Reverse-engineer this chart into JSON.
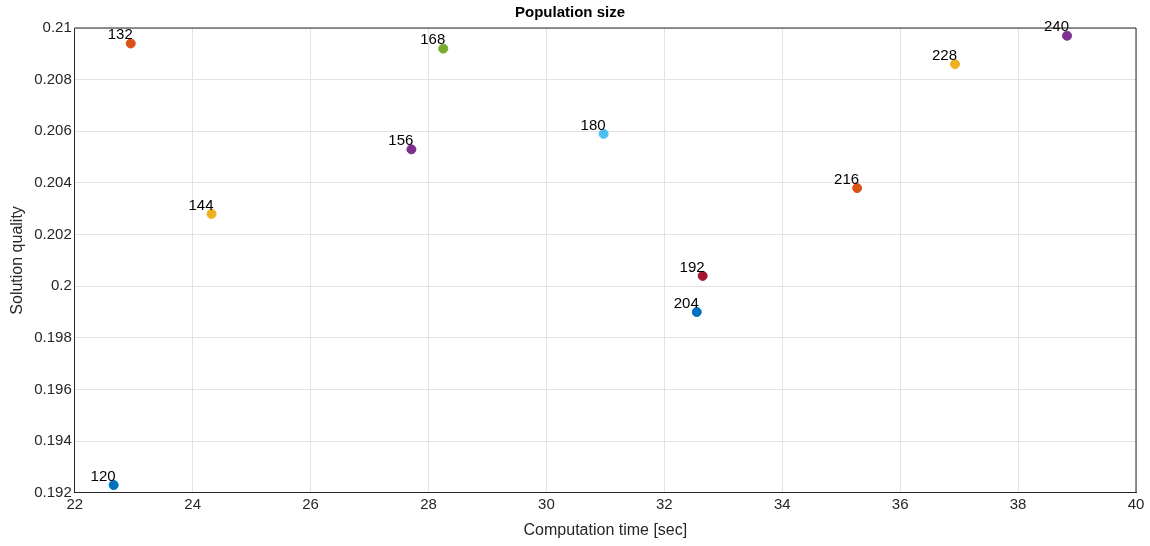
{
  "chart_data": {
    "type": "scatter",
    "title": "Population size",
    "xlabel": "Computation time [sec]",
    "ylabel": "Solution quality",
    "xlim": [
      22,
      40
    ],
    "xticks": [
      22,
      24,
      26,
      28,
      30,
      32,
      34,
      36,
      38,
      40
    ],
    "ylim": [
      0.192,
      0.21
    ],
    "yticks": [
      0.192,
      0.194,
      0.196,
      0.198,
      0.2,
      0.202,
      0.204,
      0.206,
      0.208,
      0.21
    ],
    "grid": true,
    "legend": false,
    "marker": "circle",
    "series": [
      {
        "name": "120",
        "color": "#0072bd",
        "x": [
          22.66
        ],
        "values": [
          0.1923
        ]
      },
      {
        "name": "132",
        "color": "#d95319",
        "x": [
          22.95
        ],
        "values": [
          0.2094
        ]
      },
      {
        "name": "144",
        "color": "#edb120",
        "x": [
          24.32
        ],
        "values": [
          0.2028
        ]
      },
      {
        "name": "156",
        "color": "#7e2f8e",
        "x": [
          27.71
        ],
        "values": [
          0.2053
        ]
      },
      {
        "name": "168",
        "color": "#77ac30",
        "x": [
          28.25
        ],
        "values": [
          0.2092
        ]
      },
      {
        "name": "180",
        "color": "#4dbeee",
        "x": [
          30.97
        ],
        "values": [
          0.2059
        ]
      },
      {
        "name": "192",
        "color": "#a2142f",
        "x": [
          32.65
        ],
        "values": [
          0.2004
        ]
      },
      {
        "name": "204",
        "color": "#0072bd",
        "x": [
          32.55
        ],
        "values": [
          0.199
        ]
      },
      {
        "name": "216",
        "color": "#d95319",
        "x": [
          35.27
        ],
        "values": [
          0.2038
        ]
      },
      {
        "name": "228",
        "color": "#edb120",
        "x": [
          36.93
        ],
        "values": [
          0.2086
        ]
      },
      {
        "name": "240",
        "color": "#7e2f8e",
        "x": [
          38.83
        ],
        "values": [
          0.2097
        ]
      }
    ]
  }
}
